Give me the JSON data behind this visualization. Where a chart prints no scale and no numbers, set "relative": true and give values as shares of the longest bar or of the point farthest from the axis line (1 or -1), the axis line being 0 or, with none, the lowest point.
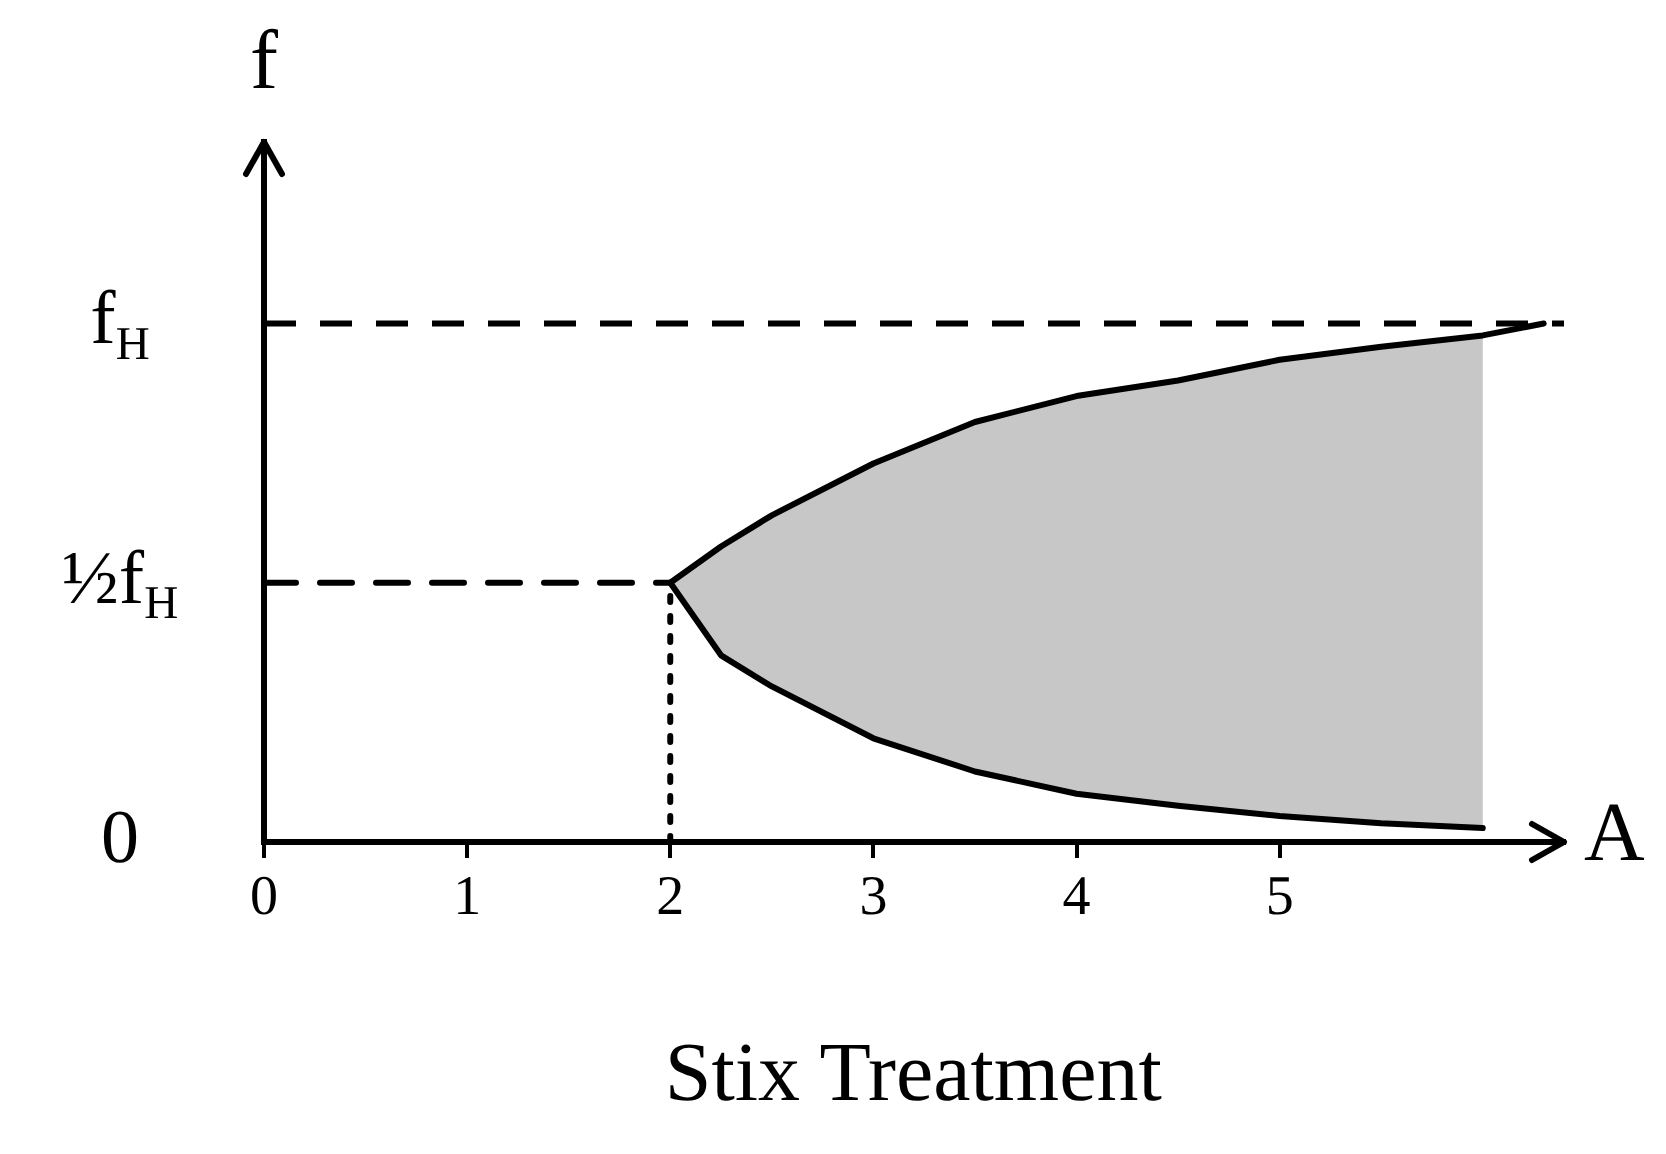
{
  "chart_data": {
    "type": "line",
    "relative": true,
    "xlabel": "A",
    "ylabel": "f",
    "annotations": [
      {
        "text": "½f$_{H}$",
        "x": 0,
        "y": 0.5
      },
      "Stix Treatment"
    ],
    "series": [
      {
        "x": [
          2,
          2.25,
          2.5,
          3,
          3.5,
          4,
          4.5,
          5,
          5.5,
          6,
          6.3
        ],
        "values": [
          0.5,
          0.57,
          0.63,
          0.73,
          0.81,
          0.86,
          0.89,
          0.93,
          0.955,
          0.977,
          1
        ],
        "upper": [
          0.5,
          0.57,
          0.63,
          0.73,
          0.81,
          0.86,
          0.89,
          0.93,
          0.955,
          0.977,
          null
        ],
        "lower": [
          0.5,
          0.36,
          0.3,
          0.2,
          0.136,
          0.093,
          0.07,
          0.05,
          0.036,
          0.027,
          null
        ],
        "color": "#000000"
      },
      {
        "x": [
          2,
          2.25,
          2.5,
          3,
          3.5,
          4,
          4.5,
          5,
          5.5,
          6
        ],
        "values": [
          0.5,
          0.36,
          0.3,
          0.2,
          0.136,
          0.093,
          0.07,
          0.05,
          0.036,
          0.027
        ],
        "color": "#000000"
      },
      {
        "x": [
          0,
          2
        ],
        "values": [
          0.5,
          0.5
        ],
        "color": "#000000",
        "line_style": "dashed"
      },
      {
        "x": [
          2,
          2
        ],
        "values": [
          0,
          0.5
        ],
        "color": "#000000",
        "line_style": "dotted"
      }
    ],
    "ref_lines": [
      {
        "axis": "y",
        "value": 0,
        "label": "0",
        "color": "#000000"
      },
      {
        "axis": "y",
        "value": 1,
        "label": "f$_{H}$",
        "line_style": "dashed",
        "color": "#000000"
      }
    ],
    "xlim": [
      0,
      6.4
    ],
    "xticks": [
      0,
      1,
      2,
      3,
      4,
      5
    ],
    "grid": false
  }
}
